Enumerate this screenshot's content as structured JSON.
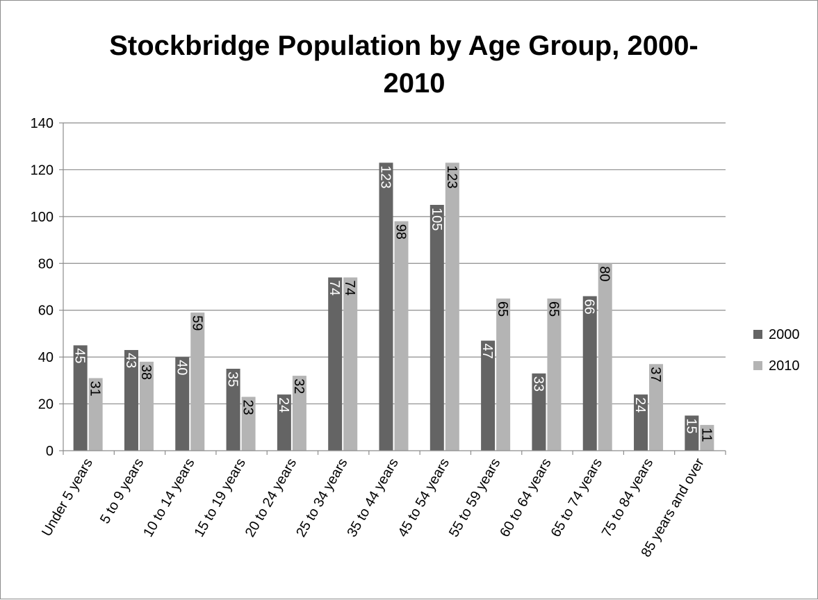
{
  "chart_data": {
    "type": "bar",
    "title_lines": [
      "Stockbridge Population by Age Group, 2000-",
      "2010"
    ],
    "xlabel": "",
    "ylabel": "",
    "ylim": [
      0,
      140
    ],
    "y_ticks": [
      0,
      20,
      40,
      60,
      80,
      100,
      120,
      140
    ],
    "y_tick_labels": [
      "0",
      "20",
      "40",
      "60",
      "80",
      "100",
      "120",
      "140"
    ],
    "grid": true,
    "legend_position": "right",
    "categories": [
      "Under 5 years",
      "5 to 9 years",
      "10 to 14 years",
      "15 to 19 years",
      "20 to 24 years",
      "25 to 34 years",
      "35 to 44 years",
      "45 to 54 years",
      "55 to 59 years",
      "60 to 64 years",
      "65 to 74 years",
      "75 to 84 years",
      "85 years and over"
    ],
    "series": [
      {
        "name": "2000",
        "color": "#646464",
        "label_color": "#ffffff",
        "values": [
          45,
          43,
          40,
          35,
          24,
          74,
          123,
          105,
          47,
          33,
          66,
          24,
          15
        ],
        "value_labels": [
          "45",
          "43",
          "40",
          "35",
          "24",
          "74",
          "123",
          "105",
          "47",
          "33",
          "66",
          "24",
          "15"
        ]
      },
      {
        "name": "2010",
        "color": "#b4b4b4",
        "label_color": "#000000",
        "values": [
          31,
          38,
          59,
          23,
          32,
          74,
          98,
          123,
          65,
          65,
          80,
          37,
          11
        ],
        "value_labels": [
          "31",
          "38",
          "59",
          "23",
          "32",
          "74",
          "98",
          "123",
          "65",
          "65",
          "80",
          "37",
          "11"
        ]
      }
    ]
  }
}
